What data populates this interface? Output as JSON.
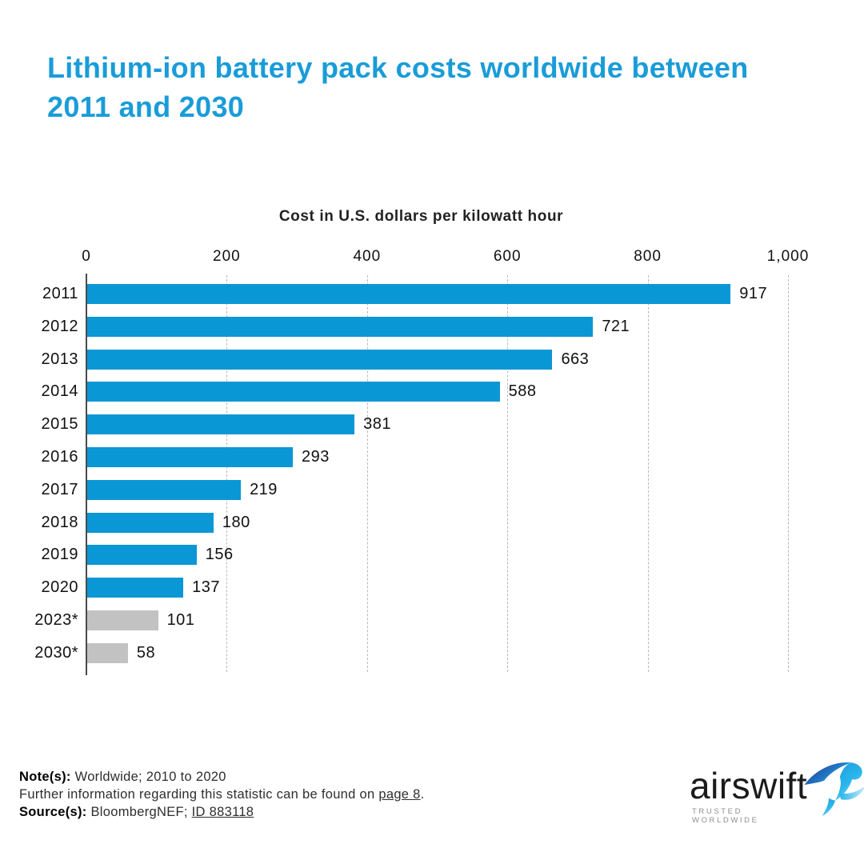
{
  "page": {
    "title": "Lithium-ion battery pack costs worldwide between 2011 and 2030"
  },
  "chart_data": {
    "type": "bar",
    "orientation": "horizontal",
    "title": "Cost in U.S. dollars per kilowatt hour",
    "categories": [
      "2011",
      "2012",
      "2013",
      "2014",
      "2015",
      "2016",
      "2017",
      "2018",
      "2019",
      "2020",
      "2023*",
      "2030*"
    ],
    "values": [
      917,
      721,
      663,
      588,
      381,
      293,
      219,
      180,
      156,
      137,
      101,
      58
    ],
    "bar_colors": [
      "#0a97d5",
      "#0a97d5",
      "#0a97d5",
      "#0a97d5",
      "#0a97d5",
      "#0a97d5",
      "#0a97d5",
      "#0a97d5",
      "#0a97d5",
      "#0a97d5",
      "#c2c2c2",
      "#c2c2c2"
    ],
    "xlabel": "Cost in U.S. dollars per kilowatt hour",
    "ylabel": "",
    "xlim": [
      0,
      1000
    ],
    "x_ticks": [
      "0",
      "200",
      "400",
      "600",
      "800",
      "1,000"
    ],
    "x_tick_values": [
      0,
      200,
      400,
      600,
      800,
      1000
    ],
    "grid": "dashed vertical gridlines at ticks, solid axis line at 0",
    "legend": "none",
    "colors": {
      "bar_primary": "#0a97d5",
      "bar_forecast": "#c2c2c2",
      "title_accent": "#1a9cd8"
    }
  },
  "notes": {
    "note_label": "Note(s):",
    "note_text": " Worldwide; 2010 to 2020",
    "further_prefix": "Further information regarding this statistic can be found on ",
    "further_link": "page 8",
    "further_suffix": ".",
    "source_label": "Source(s):",
    "source_text": " BloombergNEF; ",
    "source_link": "ID 883118"
  },
  "logo": {
    "name": "airswift",
    "tagline": "TRUSTED WORLDWIDE"
  }
}
